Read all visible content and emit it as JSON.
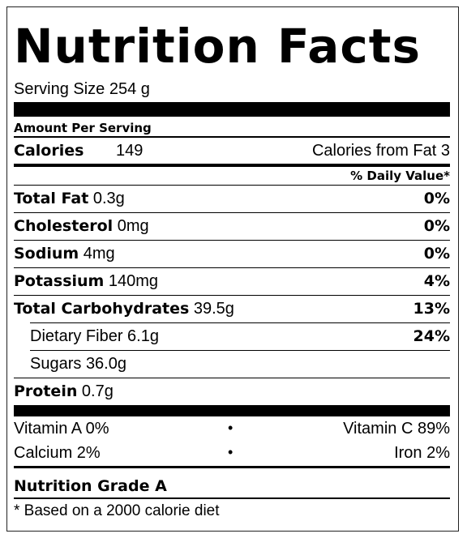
{
  "header": {
    "title": "Nutrition Facts",
    "serving_size": "Serving Size 254 g"
  },
  "amount_per_serving": "Amount Per Serving",
  "calories": {
    "label": "Calories",
    "value": "149",
    "from_fat": "Calories from Fat 3"
  },
  "daily_value_header": "% Daily Value*",
  "nutrients": [
    {
      "name": "Total Fat",
      "amount": "0.3g",
      "dv": "0%"
    },
    {
      "name": "Cholesterol",
      "amount": "0mg",
      "dv": "0%"
    },
    {
      "name": "Sodium",
      "amount": "4mg",
      "dv": "0%"
    },
    {
      "name": "Potassium",
      "amount": "140mg",
      "dv": "4%"
    },
    {
      "name": "Total Carbohydrates",
      "amount": "39.5g",
      "dv": "13%"
    },
    {
      "name": "Dietary Fiber",
      "amount": "6.1g",
      "dv": "24%",
      "indent": true
    },
    {
      "name": "Sugars",
      "amount": "36.0g",
      "indent": true
    },
    {
      "name": "Protein",
      "amount": "0.7g"
    }
  ],
  "vitamins": [
    {
      "left": "Vitamin A 0%",
      "separator": "•",
      "right": "Vitamin C 89%"
    },
    {
      "left": "Calcium 2%",
      "separator": "•",
      "right": "Iron 2%"
    }
  ],
  "grade": "Nutrition Grade A",
  "footnote": "* Based on a 2000 calorie diet"
}
